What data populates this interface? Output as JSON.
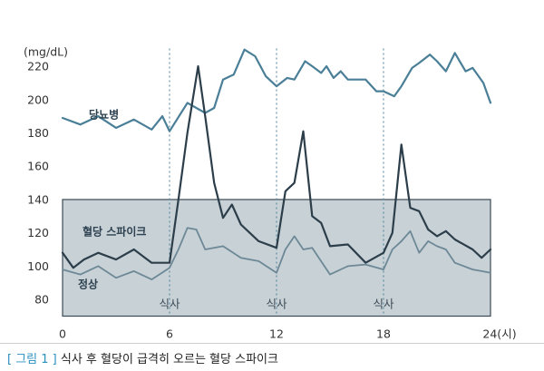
{
  "chart_data": {
    "type": "line",
    "unit_label": "(mg/dL)",
    "x_unit_label": "24(시)",
    "x_ticks": [
      0,
      6,
      12,
      18,
      24
    ],
    "y_ticks": [
      80,
      100,
      120,
      140,
      160,
      180,
      200,
      220
    ],
    "xlim": [
      0,
      24
    ],
    "ylim": [
      70,
      235
    ],
    "grid": false,
    "normal_band": [
      70,
      140
    ],
    "meal_times": [
      6,
      12,
      18
    ],
    "meal_label": "식사",
    "series": [
      {
        "name": "당뇨병",
        "color": "#4a7f97",
        "x": [
          0,
          1,
          2,
          3,
          4,
          5,
          5.6,
          6,
          7,
          8,
          8.5,
          9,
          9.6,
          10.2,
          10.8,
          11.4,
          12,
          12.6,
          13,
          13.6,
          14,
          14.5,
          14.8,
          15.2,
          15.6,
          16,
          17,
          17.6,
          18,
          18.6,
          19,
          19.6,
          20,
          20.6,
          21,
          21.5,
          22,
          22.6,
          23,
          23.6,
          24
        ],
        "y": [
          189,
          185,
          190,
          183,
          188,
          182,
          190,
          181,
          198,
          192,
          195,
          212,
          215,
          230,
          226,
          214,
          208,
          213,
          212,
          223,
          220,
          216,
          220,
          213,
          217,
          212,
          212,
          205,
          205,
          202,
          208,
          219,
          222,
          227,
          223,
          217,
          228,
          217,
          219,
          210,
          198
        ]
      },
      {
        "name": "혈당 스파이크",
        "color": "#2c3e4a",
        "x": [
          0,
          0.6,
          1.2,
          2,
          3,
          4,
          5,
          6,
          6.5,
          7,
          7.6,
          8,
          8.5,
          9,
          9.5,
          10,
          11,
          12,
          12.5,
          13,
          13.5,
          14,
          14.5,
          15,
          16,
          17,
          18,
          18.5,
          19,
          19.5,
          20,
          20.5,
          21,
          21.5,
          22,
          23,
          23.5,
          24
        ],
        "y": [
          108,
          99,
          104,
          108,
          104,
          110,
          102,
          102,
          140,
          180,
          220,
          190,
          150,
          129,
          137,
          125,
          115,
          111,
          145,
          150,
          181,
          130,
          126,
          112,
          113,
          102,
          108,
          120,
          173,
          135,
          133,
          122,
          118,
          121,
          116,
          110,
          105,
          110
        ]
      },
      {
        "name": "정상",
        "color": "#6d8896",
        "x": [
          0,
          1,
          2,
          3,
          4,
          5,
          6,
          6.5,
          7,
          7.5,
          8,
          9,
          10,
          11,
          12,
          12.5,
          13,
          13.5,
          14,
          15,
          16,
          17,
          18,
          18.5,
          19,
          19.5,
          20,
          20.5,
          21,
          21.5,
          22,
          23,
          23.5,
          24
        ],
        "y": [
          98,
          95,
          100,
          93,
          97,
          92,
          99,
          110,
          123,
          122,
          110,
          112,
          105,
          103,
          96,
          110,
          118,
          110,
          111,
          95,
          100,
          101,
          98,
          110,
          115,
          121,
          108,
          115,
          112,
          110,
          102,
          98,
          97,
          96
        ]
      }
    ]
  },
  "caption": {
    "label": "[ 그림 1 ]",
    "text": "식사 후 혈당이 급격히 오르는 혈당 스파이크"
  }
}
